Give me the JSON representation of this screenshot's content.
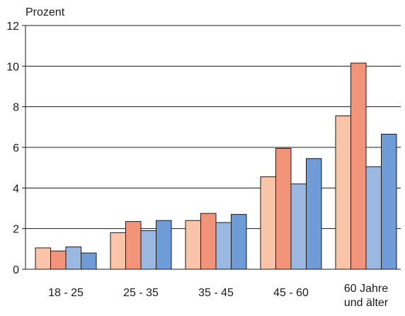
{
  "chart_data": {
    "type": "bar",
    "title": "",
    "ylabel": "Prozent",
    "xlabel": "",
    "ylim": [
      0,
      12
    ],
    "yticks": [
      0,
      2,
      4,
      6,
      8,
      10,
      12
    ],
    "grid": "horizontal",
    "categories": [
      [
        "18 - 25"
      ],
      [
        "25 - 35"
      ],
      [
        "35 - 45"
      ],
      [
        "45 - 60"
      ],
      [
        "60 Jahre",
        "und älter"
      ]
    ],
    "series": [
      {
        "color": "#f9c4a8",
        "values": [
          1.05,
          1.8,
          2.4,
          4.55,
          7.55
        ]
      },
      {
        "color": "#f2947a",
        "values": [
          0.9,
          2.35,
          2.75,
          5.95,
          10.15
        ]
      },
      {
        "color": "#9ab8e0",
        "values": [
          1.1,
          1.9,
          2.3,
          4.2,
          5.05
        ]
      },
      {
        "color": "#6f9bd6",
        "values": [
          0.8,
          2.4,
          2.7,
          5.45,
          6.65
        ]
      }
    ]
  }
}
